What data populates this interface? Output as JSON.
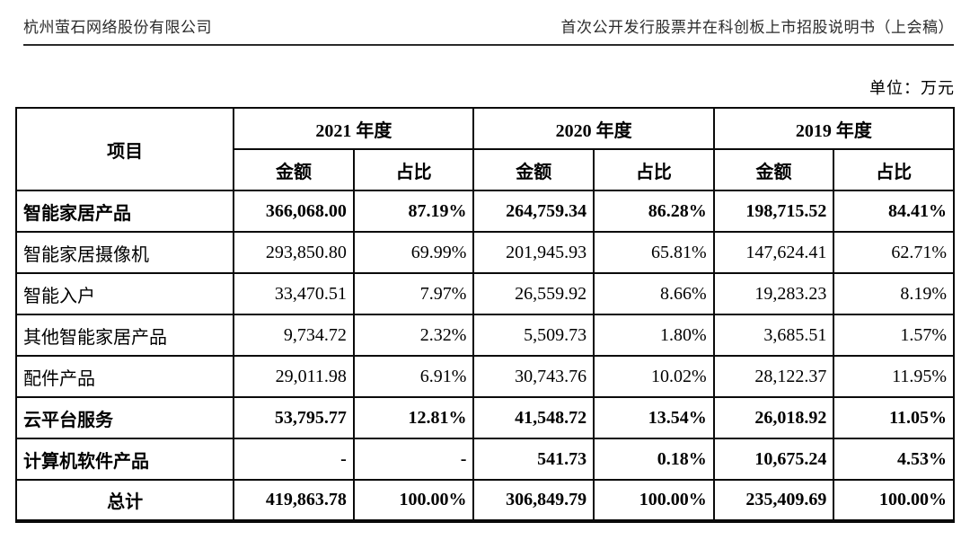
{
  "page": {
    "header_left": "杭州萤石网络股份有限公司",
    "header_right": "首次公开发行股票并在科创板上市招股说明书（上会稿）",
    "unit_label": "单位：万元"
  },
  "table": {
    "corner_header": "项目",
    "year_groups": [
      "2021 年度",
      "2020 年度",
      "2019 年度"
    ],
    "sub_headers": [
      "金额",
      "占比"
    ],
    "rows": [
      {
        "label": "智能家居产品",
        "bold": true,
        "center": false,
        "values": [
          "366,068.00",
          "87.19%",
          "264,759.34",
          "86.28%",
          "198,715.52",
          "84.41%"
        ]
      },
      {
        "label": "智能家居摄像机",
        "bold": false,
        "center": false,
        "values": [
          "293,850.80",
          "69.99%",
          "201,945.93",
          "65.81%",
          "147,624.41",
          "62.71%"
        ]
      },
      {
        "label": "智能入户",
        "bold": false,
        "center": false,
        "values": [
          "33,470.51",
          "7.97%",
          "26,559.92",
          "8.66%",
          "19,283.23",
          "8.19%"
        ]
      },
      {
        "label": "其他智能家居产品",
        "bold": false,
        "center": false,
        "values": [
          "9,734.72",
          "2.32%",
          "5,509.73",
          "1.80%",
          "3,685.51",
          "1.57%"
        ]
      },
      {
        "label": "配件产品",
        "bold": false,
        "center": false,
        "values": [
          "29,011.98",
          "6.91%",
          "30,743.76",
          "10.02%",
          "28,122.37",
          "11.95%"
        ]
      },
      {
        "label": "云平台服务",
        "bold": true,
        "center": false,
        "values": [
          "53,795.77",
          "12.81%",
          "41,548.72",
          "13.54%",
          "26,018.92",
          "11.05%"
        ]
      },
      {
        "label": "计算机软件产品",
        "bold": true,
        "center": false,
        "values": [
          "-",
          "-",
          "541.73",
          "0.18%",
          "10,675.24",
          "4.53%"
        ]
      },
      {
        "label": "总计",
        "bold": true,
        "center": true,
        "values": [
          "419,863.78",
          "100.00%",
          "306,849.79",
          "100.00%",
          "235,409.69",
          "100.00%"
        ]
      }
    ]
  }
}
